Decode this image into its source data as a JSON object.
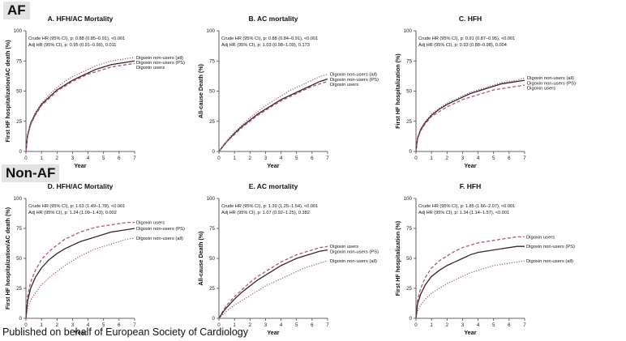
{
  "groups": [
    {
      "label": "AF"
    },
    {
      "label": "Non-AF"
    }
  ],
  "footer": "Published on behalf of European Society of Cardiology",
  "colors": {
    "axis": "#333333",
    "line_dark": "#3a2230",
    "line_mauve": "#9a5a78",
    "line_pink": "#b0527e"
  },
  "chart_data": [
    {
      "type": "line",
      "title": "A. HFH/AC Mortality",
      "xlabel": "Year",
      "ylabel": "First HF hospitalization/AC death (%)",
      "xlim": [
        0,
        7
      ],
      "ylim": [
        0,
        100
      ],
      "xticks": [
        "0",
        "1",
        "2",
        "3",
        "4",
        "5",
        "6",
        "7"
      ],
      "yticks": [
        "0",
        "25",
        "50",
        "75",
        "100"
      ],
      "stats": [
        "Crude HR (95% CI), p: 0.88 (0.85–0.91), <0.001",
        "Adj HR (95% CI), p: 0.95 (0.91–0.99), 0.011"
      ],
      "series": [
        {
          "name": "Digoxin non-users (all)",
          "style": "dotted",
          "x": [
            0,
            0.1,
            0.3,
            0.6,
            1,
            1.5,
            2,
            2.5,
            3,
            3.5,
            4,
            4.5,
            5,
            5.5,
            6,
            6.5,
            7
          ],
          "values": [
            0,
            14,
            24,
            32,
            40,
            47,
            53,
            58,
            62,
            65,
            68,
            71,
            73,
            75,
            76,
            77,
            78
          ]
        },
        {
          "name": "Digoxin non-users (PS)",
          "style": "solid",
          "x": [
            0,
            0.1,
            0.3,
            0.6,
            1,
            1.5,
            2,
            2.5,
            3,
            3.5,
            4,
            4.5,
            5,
            5.5,
            6,
            6.5,
            7
          ],
          "values": [
            0,
            13,
            23,
            31,
            39,
            45,
            51,
            55,
            59,
            62,
            65,
            68,
            70,
            72,
            73,
            74,
            75
          ]
        },
        {
          "name": "Digoxin users",
          "style": "dashed",
          "x": [
            0,
            0.1,
            0.3,
            0.6,
            1,
            1.5,
            2,
            2.5,
            3,
            3.5,
            4,
            4.5,
            5,
            5.5,
            6,
            6.5,
            7
          ],
          "values": [
            0,
            12,
            22,
            30,
            38,
            44,
            50,
            54,
            58,
            61,
            64,
            66,
            68,
            70,
            71,
            72,
            73
          ]
        }
      ]
    },
    {
      "type": "line",
      "title": "B. AC mortality",
      "xlabel": "Year",
      "ylabel": "All-cause Death (%)",
      "xlim": [
        0,
        7
      ],
      "ylim": [
        0,
        100
      ],
      "xticks": [
        "0",
        "1",
        "2",
        "3",
        "4",
        "5",
        "6",
        "7"
      ],
      "yticks": [
        "0",
        "25",
        "50",
        "75",
        "100"
      ],
      "stats": [
        "Crude HR (95% CI), p: 0.88 (0.84–0.91), <0.001",
        "Adj HR (95% CI), p: 1.03 (0.98–1.09), 0.173"
      ],
      "series": [
        {
          "name": "Digoxin non-users (all)",
          "style": "dotted",
          "x": [
            0,
            0.25,
            0.5,
            1,
            1.5,
            2,
            2.5,
            3,
            3.5,
            4,
            4.5,
            5,
            5.5,
            6,
            6.5,
            7
          ],
          "values": [
            0,
            5,
            9,
            16,
            22,
            28,
            33,
            38,
            42,
            46,
            50,
            53,
            56,
            59,
            62,
            64
          ]
        },
        {
          "name": "Digoxin non-users (PS)",
          "style": "solid",
          "x": [
            0,
            0.25,
            0.5,
            1,
            1.5,
            2,
            2.5,
            3,
            3.5,
            4,
            4.5,
            5,
            5.5,
            6,
            6.5,
            7
          ],
          "values": [
            0,
            4,
            8,
            15,
            21,
            26,
            31,
            35,
            39,
            43,
            46,
            49,
            52,
            55,
            58,
            60
          ]
        },
        {
          "name": "Digoxin users",
          "style": "dashed",
          "x": [
            0,
            0.25,
            0.5,
            1,
            1.5,
            2,
            2.5,
            3,
            3.5,
            4,
            4.5,
            5,
            5.5,
            6,
            6.5,
            7
          ],
          "values": [
            0,
            4,
            8,
            14,
            20,
            25,
            30,
            34,
            38,
            42,
            45,
            48,
            51,
            54,
            56,
            58
          ]
        }
      ]
    },
    {
      "type": "line",
      "title": "C. HFH",
      "xlabel": "Year",
      "ylabel": "First HF hospitalization (%)",
      "xlim": [
        0,
        7
      ],
      "ylim": [
        0,
        100
      ],
      "xticks": [
        "0",
        "1",
        "2",
        "3",
        "4",
        "5",
        "6",
        "7"
      ],
      "yticks": [
        "0",
        "25",
        "50",
        "75",
        "100"
      ],
      "stats": [
        "Crude HR (95% CI), p: 0.91 (0.87–0.95), <0.001",
        "Adj HR (95% CI), p: 0.93 (0.88–0.98), 0.004"
      ],
      "series": [
        {
          "name": "Digoxin non-users (all)",
          "style": "dotted",
          "x": [
            0,
            0.1,
            0.3,
            0.6,
            1,
            1.5,
            2,
            2.5,
            3,
            3.5,
            4,
            4.5,
            5,
            5.5,
            6,
            6.5,
            7
          ],
          "values": [
            0,
            11,
            19,
            25,
            31,
            36,
            40,
            43,
            46,
            49,
            51,
            53,
            55,
            57,
            58,
            59,
            61
          ]
        },
        {
          "name": "Digoxin non-users (PS)",
          "style": "solid",
          "x": [
            0,
            0.1,
            0.3,
            0.6,
            1,
            1.5,
            2,
            2.5,
            3,
            3.5,
            4,
            4.5,
            5,
            5.5,
            6,
            6.5,
            7
          ],
          "values": [
            0,
            11,
            18,
            24,
            30,
            35,
            39,
            42,
            45,
            48,
            50,
            52,
            54,
            56,
            57,
            58,
            59
          ]
        },
        {
          "name": "Digoxin users",
          "style": "dashed",
          "x": [
            0,
            0.1,
            0.3,
            0.6,
            1,
            1.5,
            2,
            2.5,
            3,
            3.5,
            4,
            4.5,
            5,
            5.5,
            6,
            6.5,
            7
          ],
          "values": [
            0,
            10,
            17,
            23,
            29,
            33,
            37,
            40,
            43,
            45,
            47,
            49,
            51,
            52,
            53,
            54,
            55
          ]
        }
      ]
    },
    {
      "type": "line",
      "title": "D. HFH/AC Mortality",
      "xlabel": "Year",
      "ylabel": "First HF hospitalization/AC death (%)",
      "xlim": [
        0,
        7
      ],
      "ylim": [
        0,
        100
      ],
      "xticks": [
        "0",
        "1",
        "2",
        "3",
        "4",
        "5",
        "6",
        "7"
      ],
      "yticks": [
        "0",
        "25",
        "50",
        "75",
        "100"
      ],
      "stats": [
        "Crude HR (95% CI), p: 1.63 (1.49–1.78), <0.001",
        "Adj HR (95% CI), p: 1.24 (1.09–1.43), 0.002"
      ],
      "series": [
        {
          "name": "Digoxin users",
          "style": "dashed",
          "x": [
            0,
            0.1,
            0.3,
            0.6,
            1,
            1.5,
            2,
            2.5,
            3,
            3.5,
            4,
            4.5,
            5,
            5.5,
            6,
            6.5,
            7
          ],
          "values": [
            0,
            18,
            30,
            40,
            49,
            56,
            61,
            66,
            69,
            72,
            74,
            76,
            77,
            78,
            79,
            80,
            80
          ]
        },
        {
          "name": "Digoxin non-users (PS)",
          "style": "solid",
          "x": [
            0,
            0.1,
            0.3,
            0.6,
            1,
            1.5,
            2,
            2.5,
            3,
            3.5,
            4,
            4.5,
            5,
            5.5,
            6,
            6.5,
            7
          ],
          "values": [
            0,
            14,
            25,
            34,
            42,
            49,
            54,
            58,
            61,
            64,
            66,
            68,
            70,
            72,
            73,
            74,
            75
          ]
        },
        {
          "name": "Digoxin non-users (all)",
          "style": "dotted",
          "x": [
            0,
            0.1,
            0.3,
            0.6,
            1,
            1.5,
            2,
            2.5,
            3,
            3.5,
            4,
            4.5,
            5,
            5.5,
            6,
            6.5,
            7
          ],
          "values": [
            0,
            8,
            15,
            21,
            28,
            34,
            39,
            44,
            48,
            52,
            55,
            58,
            60,
            62,
            64,
            66,
            67
          ]
        }
      ]
    },
    {
      "type": "line",
      "title": "E. AC mortality",
      "xlabel": "Year",
      "ylabel": "All-cause Death (%)",
      "xlim": [
        0,
        7
      ],
      "ylim": [
        0,
        100
      ],
      "xticks": [
        "0",
        "1",
        "2",
        "3",
        "4",
        "5",
        "6",
        "7"
      ],
      "yticks": [
        "0",
        "25",
        "50",
        "75",
        "100"
      ],
      "stats": [
        "Crude HR (95% CI), p: 1.39 (1.25–1.54), <0.001",
        "Adj HR (95% CI), p: 1.07 (0.92–1.25), 0.382"
      ],
      "series": [
        {
          "name": "Digoxin users",
          "style": "dashed",
          "x": [
            0,
            0.25,
            0.5,
            1,
            1.5,
            2,
            2.5,
            3,
            3.5,
            4,
            4.5,
            5,
            5.5,
            6,
            6.5,
            7
          ],
          "values": [
            0,
            6,
            11,
            18,
            24,
            30,
            35,
            39,
            43,
            47,
            50,
            53,
            55,
            57,
            59,
            60
          ]
        },
        {
          "name": "Digoxin non-users (PS)",
          "style": "solid",
          "x": [
            0,
            0.25,
            0.5,
            1,
            1.5,
            2,
            2.5,
            3,
            3.5,
            4,
            4.5,
            5,
            5.5,
            6,
            6.5,
            7
          ],
          "values": [
            0,
            5,
            9,
            16,
            22,
            27,
            32,
            36,
            40,
            44,
            47,
            50,
            52,
            54,
            56,
            57
          ]
        },
        {
          "name": "Digoxin non-users (all)",
          "style": "dotted",
          "x": [
            0,
            0.25,
            0.5,
            1,
            1.5,
            2,
            2.5,
            3,
            3.5,
            4,
            4.5,
            5,
            5.5,
            6,
            6.5,
            7
          ],
          "values": [
            0,
            3,
            6,
            11,
            15,
            19,
            23,
            27,
            30,
            33,
            36,
            39,
            42,
            44,
            46,
            48
          ]
        }
      ]
    },
    {
      "type": "line",
      "title": "F. HFH",
      "xlabel": "Year",
      "ylabel": "First HF hospitalization (%)",
      "xlim": [
        0,
        7
      ],
      "ylim": [
        0,
        100
      ],
      "xticks": [
        "0",
        "1",
        "2",
        "3",
        "4",
        "5",
        "6",
        "7"
      ],
      "yticks": [
        "0",
        "25",
        "50",
        "75",
        "100"
      ],
      "stats": [
        "Crude HR (95% CI), p: 1.85 (1.66–2.07), <0.001",
        "Adj HR (95% CI), p: 1.34 (1.14–1.57), <0.001"
      ],
      "series": [
        {
          "name": "Digoxin users",
          "style": "dashed",
          "x": [
            0,
            0.1,
            0.3,
            0.6,
            1,
            1.5,
            2,
            2.5,
            3,
            3.5,
            4,
            4.5,
            5,
            5.5,
            6,
            6.5,
            7
          ],
          "values": [
            0,
            15,
            25,
            34,
            42,
            48,
            52,
            56,
            59,
            61,
            63,
            64,
            65,
            66,
            67,
            68,
            68
          ]
        },
        {
          "name": "Digoxin non-users (PS)",
          "style": "solid",
          "x": [
            0,
            0.1,
            0.3,
            0.6,
            1,
            1.5,
            2,
            2.5,
            3,
            3.5,
            4,
            4.5,
            5,
            5.5,
            6,
            6.5,
            7
          ],
          "values": [
            0,
            12,
            20,
            28,
            35,
            40,
            44,
            47,
            50,
            53,
            55,
            56,
            57,
            58,
            59,
            60,
            60
          ]
        },
        {
          "name": "Digoxin non-users (all)",
          "style": "dotted",
          "x": [
            0,
            0.1,
            0.3,
            0.6,
            1,
            1.5,
            2,
            2.5,
            3,
            3.5,
            4,
            4.5,
            5,
            5.5,
            6,
            6.5,
            7
          ],
          "values": [
            0,
            6,
            11,
            16,
            21,
            25,
            29,
            32,
            35,
            38,
            40,
            42,
            44,
            45,
            46,
            47,
            48
          ]
        }
      ]
    }
  ]
}
